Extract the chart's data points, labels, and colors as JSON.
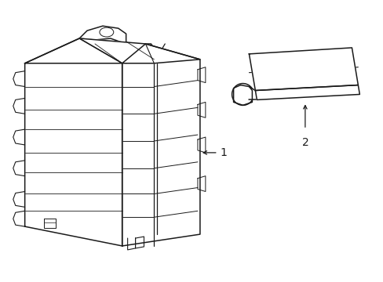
{
  "background_color": "#ffffff",
  "line_color": "#1a1a1a",
  "line_width": 1.1,
  "label1": "1",
  "label2": "2",
  "figsize": [
    4.89,
    3.6
  ],
  "dpi": 100
}
